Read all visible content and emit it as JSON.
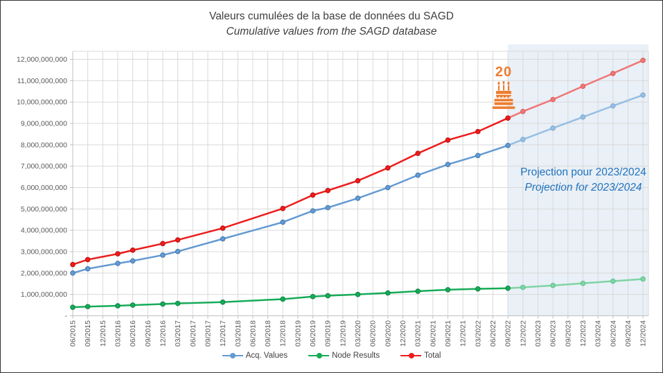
{
  "title": {
    "line1": "Valeurs cumulées de la base de données du SAGD",
    "line2": "Cumulative values from the SAGD database"
  },
  "annotations": {
    "anniversary_number": "20",
    "anniversary_icon": "birthday-cake",
    "anniversary_color": "#ED7D31",
    "projection_label_fr": "Projection pour 2023/2024",
    "projection_label_en": "Projection for 2023/2024",
    "projection_label_color": "#2273BE"
  },
  "colors": {
    "background": "#ffffff",
    "frame_border": "#333333",
    "gridline": "#D9D9D9",
    "axis_line": "#BFBFBF",
    "tick_label": "#595959",
    "title_text": "#3f3f3f",
    "projection_shading": "#E9F0F7"
  },
  "chart_data": {
    "type": "line",
    "title": "Valeurs cumulées de la base de données du SAGD",
    "subtitle": "Cumulative values from the SAGD database",
    "xlabel": "",
    "ylabel": "",
    "grid": true,
    "legend_position": "bottom",
    "y_axis": {
      "min": 0,
      "max": 12000000000,
      "step": 1000000000,
      "zero_label": "-"
    },
    "categories": [
      "06/2015",
      "09/2015",
      "12/2015",
      "03/2016",
      "06/2016",
      "09/2016",
      "12/2016",
      "03/2017",
      "06/2017",
      "09/2017",
      "12/2017",
      "03/2018",
      "06/2018",
      "09/2018",
      "12/2018",
      "03/2019",
      "06/2019",
      "09/2019",
      "12/2019",
      "03/2020",
      "06/2020",
      "09/2020",
      "12/2020",
      "03/2021",
      "06/2021",
      "09/2021",
      "12/2021",
      "03/2022",
      "06/2022",
      "09/2022",
      "12/2022",
      "03/2023",
      "06/2023",
      "09/2023",
      "12/2023",
      "03/2024",
      "06/2024",
      "09/2024",
      "12/2024"
    ],
    "projection_region": {
      "start_category": "09/2022",
      "fill": "#E9F0F7"
    },
    "series": [
      {
        "name": "Acq. Values",
        "color": "#639AD2",
        "marker_edge": "#4478AE",
        "projection_color": "#97BEE3",
        "projection_marker_edge": "#7FA8CE",
        "points": [
          [
            "06/2015",
            2000000000
          ],
          [
            "09/2015",
            2200000000
          ],
          [
            "03/2016",
            2450000000
          ],
          [
            "06/2016",
            2570000000
          ],
          [
            "12/2016",
            2840000000
          ],
          [
            "03/2017",
            3010000000
          ],
          [
            "12/2017",
            3600000000
          ],
          [
            "12/2018",
            4380000000
          ],
          [
            "06/2019",
            4910000000
          ],
          [
            "09/2019",
            5060000000
          ],
          [
            "03/2020",
            5500000000
          ],
          [
            "09/2020",
            6000000000
          ],
          [
            "03/2021",
            6580000000
          ],
          [
            "09/2021",
            7080000000
          ],
          [
            "03/2022",
            7500000000
          ],
          [
            "09/2022",
            7970000000
          ]
        ],
        "projection_points": [
          [
            "12/2022",
            8250000000
          ],
          [
            "06/2023",
            8780000000
          ],
          [
            "12/2023",
            9300000000
          ],
          [
            "06/2024",
            9820000000
          ],
          [
            "12/2024",
            10330000000
          ]
        ]
      },
      {
        "name": "Node Results",
        "color": "#16AB58",
        "marker_edge": "#0C8040",
        "projection_color": "#7ED4A5",
        "projection_marker_edge": "#5FC08A",
        "points": [
          [
            "06/2015",
            400000000
          ],
          [
            "09/2015",
            430000000
          ],
          [
            "03/2016",
            470000000
          ],
          [
            "06/2016",
            500000000
          ],
          [
            "12/2016",
            550000000
          ],
          [
            "03/2017",
            580000000
          ],
          [
            "12/2017",
            640000000
          ],
          [
            "12/2018",
            780000000
          ],
          [
            "06/2019",
            900000000
          ],
          [
            "09/2019",
            940000000
          ],
          [
            "03/2020",
            1000000000
          ],
          [
            "09/2020",
            1070000000
          ],
          [
            "03/2021",
            1150000000
          ],
          [
            "09/2021",
            1220000000
          ],
          [
            "03/2022",
            1260000000
          ],
          [
            "09/2022",
            1290000000
          ]
        ],
        "projection_points": [
          [
            "12/2022",
            1330000000
          ],
          [
            "06/2023",
            1420000000
          ],
          [
            "12/2023",
            1520000000
          ],
          [
            "06/2024",
            1620000000
          ],
          [
            "12/2024",
            1720000000
          ]
        ]
      },
      {
        "name": "Total",
        "color": "#ED1C1C",
        "marker_edge": "#B80E0E",
        "projection_color": "#F07575",
        "projection_marker_edge": "#D95F5F",
        "points": [
          [
            "06/2015",
            2400000000
          ],
          [
            "09/2015",
            2630000000
          ],
          [
            "03/2016",
            2900000000
          ],
          [
            "06/2016",
            3070000000
          ],
          [
            "12/2016",
            3380000000
          ],
          [
            "03/2017",
            3550000000
          ],
          [
            "12/2017",
            4100000000
          ],
          [
            "12/2018",
            5020000000
          ],
          [
            "06/2019",
            5650000000
          ],
          [
            "09/2019",
            5860000000
          ],
          [
            "03/2020",
            6320000000
          ],
          [
            "09/2020",
            6920000000
          ],
          [
            "03/2021",
            7600000000
          ],
          [
            "09/2021",
            8220000000
          ],
          [
            "03/2022",
            8620000000
          ],
          [
            "09/2022",
            9250000000
          ]
        ],
        "projection_points": [
          [
            "12/2022",
            9560000000
          ],
          [
            "06/2023",
            10120000000
          ],
          [
            "12/2023",
            10740000000
          ],
          [
            "06/2024",
            11340000000
          ],
          [
            "12/2024",
            11950000000
          ]
        ]
      }
    ]
  }
}
